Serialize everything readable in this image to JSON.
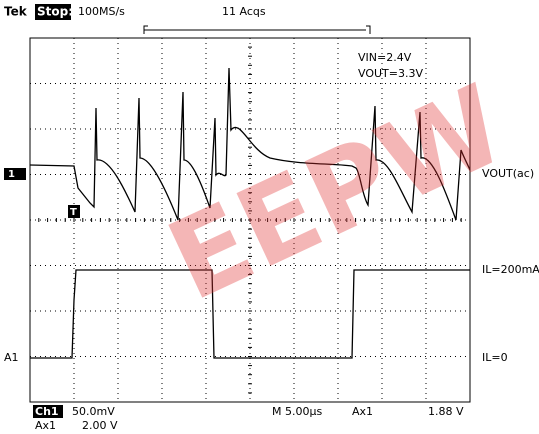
{
  "header": {
    "brand": "Tek",
    "status": "Stop:",
    "sample_rate": "100MS/s",
    "acquisitions": "11 Acqs"
  },
  "annotations": {
    "vin": "VIN=2.4V",
    "vout": "VOUT=3.3V"
  },
  "trace_labels": {
    "ch1_marker": "1",
    "trigger": "T",
    "vout": "VOUT(ac)",
    "il_high": "IL=200mA",
    "il_low": "IL=0",
    "a1": "A1"
  },
  "footer": {
    "ch1": "Ch1",
    "ch1_scale": "50.0mV",
    "ax1": "Ax1",
    "ax1_scale": "2.00 V",
    "timebase": "M 5.00µs",
    "trigger_source": "Ax1",
    "trigger_level": "1.88 V"
  },
  "watermark": "EEPW"
}
